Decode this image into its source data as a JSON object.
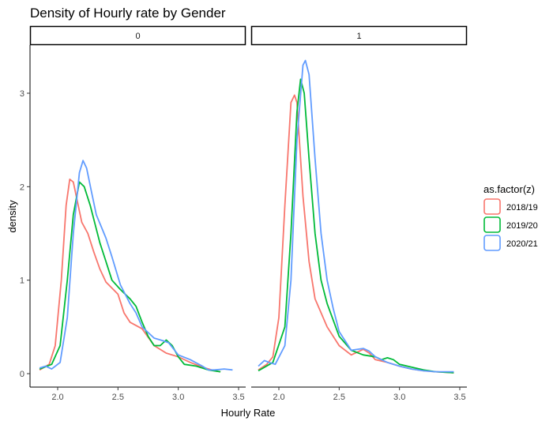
{
  "chart_data": {
    "type": "line",
    "title": "Density of Hourly rate by Gender",
    "xlabel": "Hourly Rate",
    "ylabel": "density",
    "xlim": [
      1.8,
      3.5
    ],
    "ylim": [
      0,
      3.5
    ],
    "x_ticks": [
      2.0,
      2.5,
      3.0,
      3.5
    ],
    "x_tick_labels": [
      "2.0",
      "2.5",
      "3.0",
      "3.5"
    ],
    "y_ticks": [
      0,
      1,
      2,
      3
    ],
    "y_tick_labels": [
      "0",
      "1",
      "2",
      "3"
    ],
    "grid": false,
    "legend": {
      "title": "as.factor(z)",
      "position": "right"
    },
    "series_meta": [
      {
        "name": "2018/19",
        "color": "#F8766D"
      },
      {
        "name": "2019/20",
        "color": "#00BA38"
      },
      {
        "name": "2020/21",
        "color": "#619CFF"
      }
    ],
    "panels": [
      {
        "label": "0",
        "series": [
          {
            "name": "2018/19",
            "points": [
              [
                1.85,
                0.04
              ],
              [
                1.93,
                0.1
              ],
              [
                1.98,
                0.3
              ],
              [
                2.03,
                1.0
              ],
              [
                2.07,
                1.8
              ],
              [
                2.1,
                2.08
              ],
              [
                2.13,
                2.05
              ],
              [
                2.17,
                1.8
              ],
              [
                2.2,
                1.62
              ],
              [
                2.25,
                1.5
              ],
              [
                2.3,
                1.3
              ],
              [
                2.35,
                1.12
              ],
              [
                2.4,
                0.98
              ],
              [
                2.5,
                0.85
              ],
              [
                2.55,
                0.65
              ],
              [
                2.6,
                0.55
              ],
              [
                2.7,
                0.48
              ],
              [
                2.8,
                0.3
              ],
              [
                2.9,
                0.22
              ],
              [
                3.0,
                0.18
              ],
              [
                3.1,
                0.12
              ],
              [
                3.2,
                0.07
              ],
              [
                3.3,
                0.03
              ],
              [
                3.35,
                0.02
              ]
            ]
          },
          {
            "name": "2019/20",
            "points": [
              [
                1.85,
                0.05
              ],
              [
                1.95,
                0.1
              ],
              [
                2.02,
                0.3
              ],
              [
                2.08,
                1.0
              ],
              [
                2.13,
                1.7
              ],
              [
                2.18,
                2.05
              ],
              [
                2.22,
                2.0
              ],
              [
                2.27,
                1.8
              ],
              [
                2.3,
                1.65
              ],
              [
                2.35,
                1.4
              ],
              [
                2.4,
                1.2
              ],
              [
                2.45,
                1.0
              ],
              [
                2.52,
                0.9
              ],
              [
                2.6,
                0.8
              ],
              [
                2.65,
                0.72
              ],
              [
                2.7,
                0.55
              ],
              [
                2.75,
                0.4
              ],
              [
                2.8,
                0.3
              ],
              [
                2.85,
                0.3
              ],
              [
                2.9,
                0.36
              ],
              [
                2.95,
                0.3
              ],
              [
                3.0,
                0.18
              ],
              [
                3.05,
                0.1
              ],
              [
                3.15,
                0.08
              ],
              [
                3.25,
                0.04
              ],
              [
                3.35,
                0.02
              ]
            ]
          },
          {
            "name": "2020/21",
            "points": [
              [
                1.85,
                0.06
              ],
              [
                1.9,
                0.08
              ],
              [
                1.95,
                0.05
              ],
              [
                2.02,
                0.12
              ],
              [
                2.08,
                0.6
              ],
              [
                2.13,
                1.5
              ],
              [
                2.18,
                2.15
              ],
              [
                2.21,
                2.28
              ],
              [
                2.24,
                2.2
              ],
              [
                2.28,
                1.95
              ],
              [
                2.32,
                1.7
              ],
              [
                2.4,
                1.45
              ],
              [
                2.45,
                1.25
              ],
              [
                2.52,
                0.95
              ],
              [
                2.6,
                0.75
              ],
              [
                2.65,
                0.65
              ],
              [
                2.7,
                0.5
              ],
              [
                2.8,
                0.38
              ],
              [
                2.88,
                0.35
              ],
              [
                2.92,
                0.33
              ],
              [
                3.0,
                0.2
              ],
              [
                3.1,
                0.15
              ],
              [
                3.2,
                0.08
              ],
              [
                3.25,
                0.04
              ],
              [
                3.3,
                0.04
              ],
              [
                3.38,
                0.05
              ],
              [
                3.45,
                0.04
              ]
            ]
          }
        ]
      },
      {
        "label": "1",
        "series": [
          {
            "name": "2018/19",
            "points": [
              [
                1.83,
                0.04
              ],
              [
                1.9,
                0.1
              ],
              [
                1.95,
                0.18
              ],
              [
                2.0,
                0.6
              ],
              [
                2.05,
                1.8
              ],
              [
                2.1,
                2.9
              ],
              [
                2.13,
                2.98
              ],
              [
                2.15,
                2.9
              ],
              [
                2.2,
                1.9
              ],
              [
                2.25,
                1.2
              ],
              [
                2.3,
                0.8
              ],
              [
                2.4,
                0.5
              ],
              [
                2.5,
                0.3
              ],
              [
                2.6,
                0.2
              ],
              [
                2.7,
                0.26
              ],
              [
                2.75,
                0.22
              ],
              [
                2.8,
                0.15
              ],
              [
                2.9,
                0.12
              ],
              [
                3.0,
                0.08
              ],
              [
                3.1,
                0.05
              ],
              [
                3.2,
                0.03
              ],
              [
                3.3,
                0.02
              ],
              [
                3.45,
                0.01
              ]
            ]
          },
          {
            "name": "2019/20",
            "points": [
              [
                1.83,
                0.03
              ],
              [
                1.95,
                0.12
              ],
              [
                2.05,
                0.5
              ],
              [
                2.1,
                1.5
              ],
              [
                2.15,
                2.8
              ],
              [
                2.18,
                3.15
              ],
              [
                2.21,
                3.0
              ],
              [
                2.25,
                2.3
              ],
              [
                2.3,
                1.5
              ],
              [
                2.35,
                1.0
              ],
              [
                2.4,
                0.75
              ],
              [
                2.5,
                0.4
              ],
              [
                2.6,
                0.25
              ],
              [
                2.7,
                0.2
              ],
              [
                2.8,
                0.18
              ],
              [
                2.85,
                0.15
              ],
              [
                2.9,
                0.17
              ],
              [
                2.95,
                0.15
              ],
              [
                3.0,
                0.1
              ],
              [
                3.1,
                0.07
              ],
              [
                3.2,
                0.04
              ],
              [
                3.3,
                0.02
              ],
              [
                3.45,
                0.01
              ]
            ]
          },
          {
            "name": "2020/21",
            "points": [
              [
                1.83,
                0.08
              ],
              [
                1.88,
                0.14
              ],
              [
                1.92,
                0.12
              ],
              [
                1.97,
                0.1
              ],
              [
                2.05,
                0.3
              ],
              [
                2.1,
                1.0
              ],
              [
                2.15,
                2.5
              ],
              [
                2.2,
                3.3
              ],
              [
                2.22,
                3.35
              ],
              [
                2.25,
                3.2
              ],
              [
                2.3,
                2.3
              ],
              [
                2.35,
                1.5
              ],
              [
                2.4,
                1.0
              ],
              [
                2.45,
                0.7
              ],
              [
                2.5,
                0.45
              ],
              [
                2.6,
                0.25
              ],
              [
                2.7,
                0.27
              ],
              [
                2.75,
                0.24
              ],
              [
                2.8,
                0.18
              ],
              [
                2.9,
                0.12
              ],
              [
                3.0,
                0.08
              ],
              [
                3.1,
                0.05
              ],
              [
                3.2,
                0.03
              ],
              [
                3.3,
                0.02
              ],
              [
                3.45,
                0.02
              ]
            ]
          }
        ]
      }
    ]
  }
}
